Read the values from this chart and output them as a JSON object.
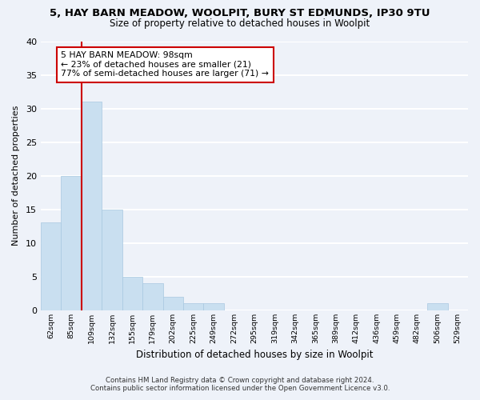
{
  "title": "5, HAY BARN MEADOW, WOOLPIT, BURY ST EDMUNDS, IP30 9TU",
  "subtitle": "Size of property relative to detached houses in Woolpit",
  "xlabel": "Distribution of detached houses by size in Woolpit",
  "ylabel": "Number of detached properties",
  "bin_labels": [
    "62sqm",
    "85sqm",
    "109sqm",
    "132sqm",
    "155sqm",
    "179sqm",
    "202sqm",
    "225sqm",
    "249sqm",
    "272sqm",
    "295sqm",
    "319sqm",
    "342sqm",
    "365sqm",
    "389sqm",
    "412sqm",
    "436sqm",
    "459sqm",
    "482sqm",
    "506sqm",
    "529sqm"
  ],
  "bar_values": [
    13,
    20,
    31,
    15,
    5,
    4,
    2,
    1,
    1,
    0,
    0,
    0,
    0,
    0,
    0,
    0,
    0,
    0,
    0,
    1,
    0
  ],
  "bar_color": "#c9dff0",
  "bar_edge_color": "#a8c8e0",
  "highlight_color": "#cc0000",
  "annotation_title": "5 HAY BARN MEADOW: 98sqm",
  "annotation_line1": "← 23% of detached houses are smaller (21)",
  "annotation_line2": "77% of semi-detached houses are larger (71) →",
  "annotation_box_color": "#ffffff",
  "annotation_box_edge": "#cc0000",
  "ylim": [
    0,
    40
  ],
  "yticks": [
    0,
    5,
    10,
    15,
    20,
    25,
    30,
    35,
    40
  ],
  "footer_line1": "Contains HM Land Registry data © Crown copyright and database right 2024.",
  "footer_line2": "Contains public sector information licensed under the Open Government Licence v3.0.",
  "bg_color": "#eef2f9",
  "plot_bg_color": "#eef2f9",
  "grid_color": "#ffffff"
}
